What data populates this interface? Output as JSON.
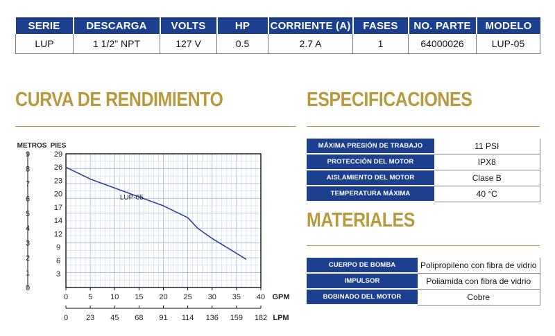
{
  "specs": {
    "headers": [
      "SERIE",
      "DESCARGA",
      "VOLTS",
      "HP",
      "CORRIENTE (A)",
      "FASES",
      "NO. PARTE",
      "MODELO"
    ],
    "values": [
      "LUP",
      "1 1/2\"  NPT",
      "127 V",
      "0.5",
      "2.7 A",
      "1",
      "64000026",
      "LUP-05"
    ]
  },
  "sections": {
    "performance_title": "CURVA DE RENDIMIENTO",
    "specifications_title": "ESPECIFICACIONES",
    "materials_title": "MATERIALES"
  },
  "specifications": [
    {
      "label": "MÁXIMA PRESIÓN DE TRABAJO",
      "value": "11 PSI"
    },
    {
      "label": "PROTECCIÓN DEL MOTOR",
      "value": "IPX8"
    },
    {
      "label": "AISLAMIENTO DEL MOTOR",
      "value": "Clase B"
    },
    {
      "label": "TEMPERATURA MÁXIMA",
      "value": "40 °C"
    }
  ],
  "materials": [
    {
      "label": "CUERPO DE BOMBA",
      "value": "Polipropileno con fibra de vidrio"
    },
    {
      "label": "IMPULSOR",
      "value": "Poliamida con fibra de vidrio"
    },
    {
      "label": "BOBINADO DEL MOTOR",
      "value": "Cobre"
    }
  ],
  "chart_data": {
    "type": "line",
    "title": "",
    "y_left_label": "METROS",
    "y_right_label": "PIES",
    "x_label": "GPM",
    "x2_label": "LPM",
    "x_ticks": [
      "0",
      "5",
      "10",
      "15",
      "20",
      "25",
      "30",
      "35",
      "40"
    ],
    "x2_ticks": [
      "0",
      "23",
      "45",
      "68",
      "91",
      "114",
      "136",
      "159",
      "182"
    ],
    "y_meters_ticks": [
      "0",
      "1",
      "2",
      "3",
      "4",
      "5",
      "6",
      "7",
      "8",
      "9"
    ],
    "y_feet_ticks": [
      "3",
      "6",
      "9",
      "12",
      "14",
      "17",
      "20",
      "23",
      "26",
      "29"
    ],
    "xlim": [
      0,
      40
    ],
    "ylim_meters": [
      0,
      9
    ],
    "grid": true,
    "series": [
      {
        "name": "LUP-05",
        "x": [
          0,
          5,
          10,
          15,
          20,
          25,
          27,
          30,
          35,
          37
        ],
        "y": [
          8.1,
          7.3,
          6.7,
          6.1,
          5.5,
          4.7,
          4.0,
          3.3,
          2.3,
          1.9
        ]
      }
    ]
  }
}
